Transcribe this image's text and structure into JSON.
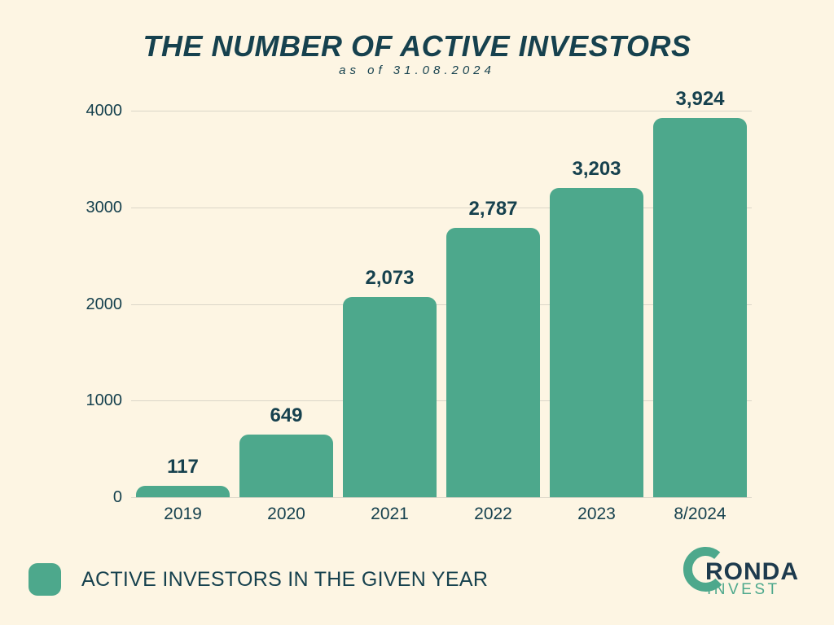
{
  "colors": {
    "background": "#fdf5e3",
    "bar": "#4da88c",
    "ink": "#16414e",
    "gridline": "#dbd6c8",
    "logo_navy": "#1d3a4d",
    "logo_green": "#4da88c"
  },
  "chart_data": {
    "type": "bar",
    "title": "THE NUMBER OF ACTIVE INVESTORS",
    "subtitle": "as of 31.08.2024",
    "categories": [
      "2019",
      "2020",
      "2021",
      "2022",
      "2023",
      "8/2024"
    ],
    "values": [
      117,
      649,
      2073,
      2787,
      3203,
      3924
    ],
    "value_labels": [
      "117",
      "649",
      "2,073",
      "2,787",
      "3,203",
      "3,924"
    ],
    "xlabel": "",
    "ylabel": "",
    "ylim": [
      0,
      4000
    ],
    "yticks": [
      0,
      1000,
      2000,
      3000,
      4000
    ],
    "ytick_labels": [
      "0",
      "1000",
      "2000",
      "3000",
      "4000"
    ],
    "grid": "horizontal",
    "legend_position": "bottom-left"
  },
  "legend": {
    "label": "ACTIVE INVESTORS IN THE GIVEN YEAR"
  },
  "logo": {
    "brand": "RONDA",
    "sub": "INVEST"
  }
}
